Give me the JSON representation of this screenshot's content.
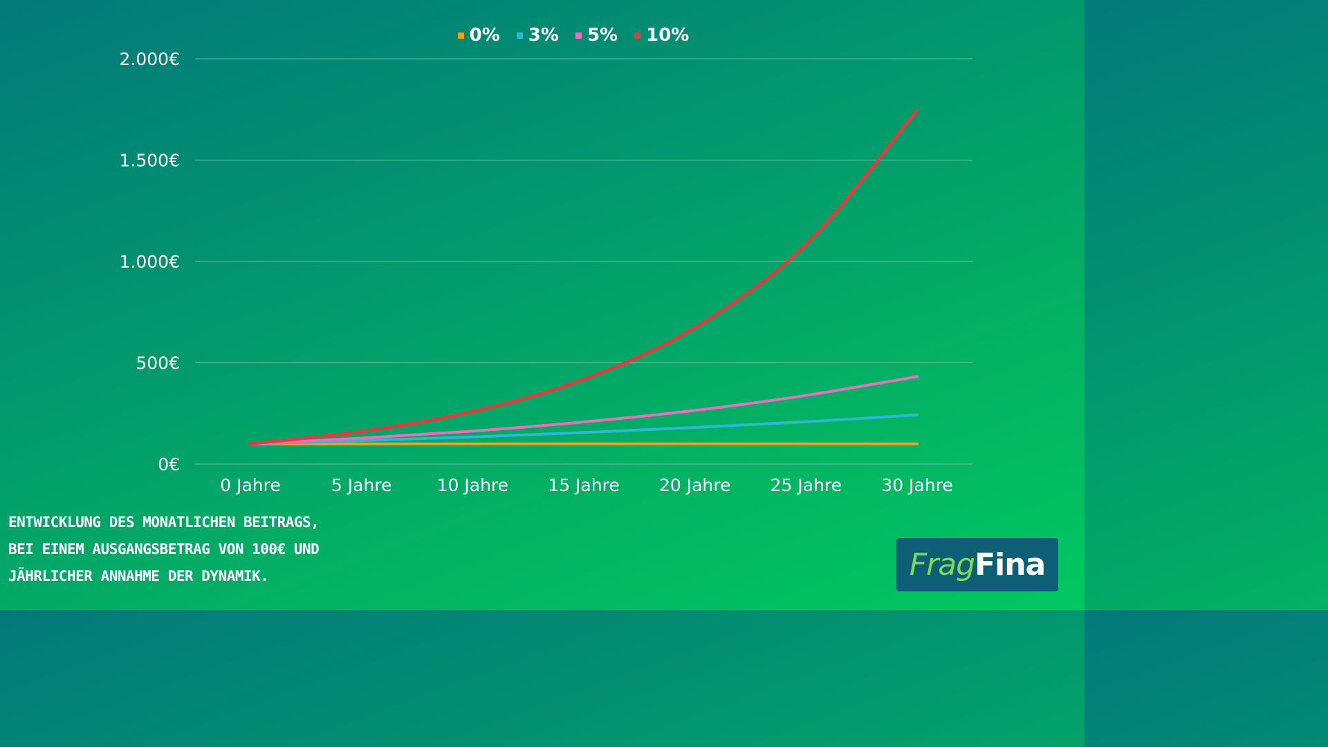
{
  "chart_data": {
    "type": "line",
    "title": "",
    "xlabel": "",
    "ylabel": "",
    "categories": [
      "0 Jahre",
      "5 Jahre",
      "10 Jahre",
      "15 Jahre",
      "20 Jahre",
      "25 Jahre",
      "30 Jahre"
    ],
    "y_tick_labels": [
      "0€",
      "500€",
      "1.000€",
      "1.500€",
      "2.000€"
    ],
    "y_ticks": [
      0,
      500,
      1000,
      1500,
      2000
    ],
    "ylim": [
      0,
      2000
    ],
    "grid": true,
    "legend_position": "top-center",
    "series": [
      {
        "name": "0%",
        "color": "#f5a312",
        "values": [
          100,
          100,
          100,
          100,
          100,
          100,
          100
        ]
      },
      {
        "name": "3%",
        "color": "#2fb7d3",
        "values": [
          100,
          116,
          134,
          156,
          181,
          209,
          243
        ]
      },
      {
        "name": "5%",
        "color": "#f26bc0",
        "values": [
          100,
          128,
          163,
          208,
          265,
          339,
          432
        ]
      },
      {
        "name": "10%",
        "color": "#f0353d",
        "values": [
          100,
          161,
          259,
          418,
          673,
          1083,
          1745
        ]
      }
    ]
  },
  "caption": {
    "line1": "Entwicklung des monatlichen Beitrags,",
    "line2": "bei einem Ausgangsbetrag von 100€ und",
    "line3": "jährlicher Annahme der Dynamik."
  },
  "logo": {
    "part1": "Frag",
    "part2": "Fina"
  },
  "colors": {
    "logo_background": "#0d5f76",
    "logo_accent": "#7ed957",
    "gridline": "#5fbfa0"
  }
}
